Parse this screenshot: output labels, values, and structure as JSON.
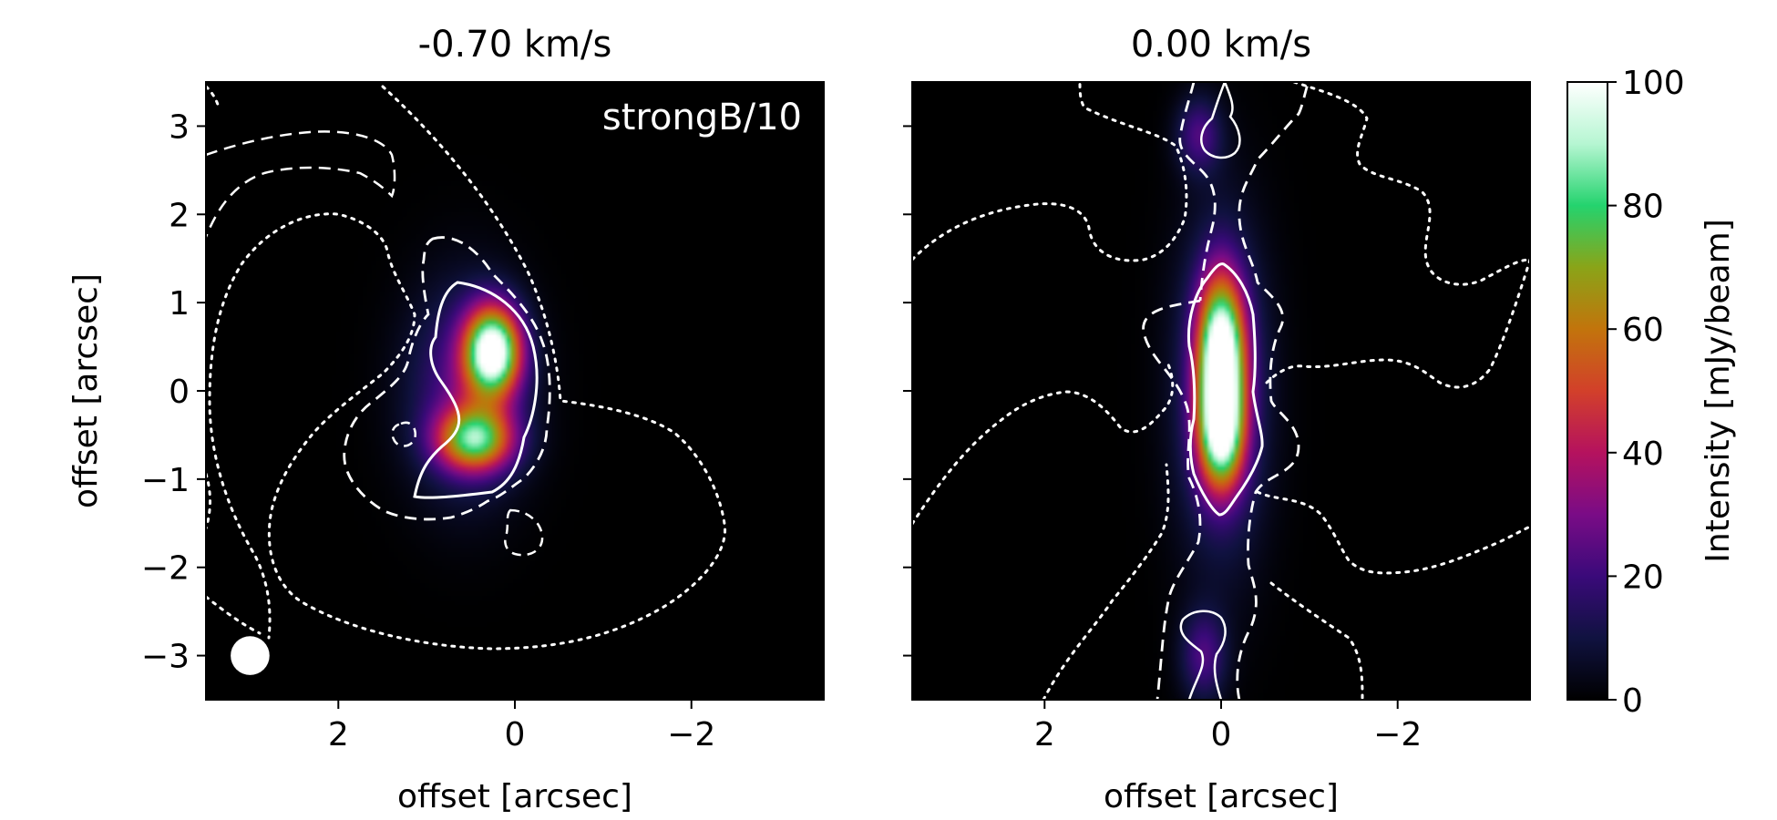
{
  "chart_data": [
    {
      "type": "heatmap",
      "title": "-0.70 km/s",
      "annotation": "strongB/10",
      "xlabel": "offset [arcsec]",
      "ylabel": "offset [arcsec]",
      "xlim": [
        3.5,
        -3.5
      ],
      "ylim": [
        -3.5,
        3.5
      ],
      "xticks": [
        2,
        0,
        -2
      ],
      "xtick_labels": [
        "2",
        "0",
        "−2"
      ],
      "yticks": [
        3,
        2,
        1,
        0,
        -1,
        -2,
        -3
      ],
      "ytick_labels": [
        "3",
        "2",
        "1",
        "0",
        "−1",
        "−2",
        "−3"
      ],
      "beam": {
        "x": 3.0,
        "y": -3.0,
        "radius_arcsec": 0.22
      },
      "peak_intensity": 100,
      "emission_components": [
        {
          "x": 0.25,
          "y": 0.45,
          "sigma_x": 0.22,
          "sigma_y": 0.35,
          "amplitude": 100
        },
        {
          "x": 0.45,
          "y": -0.55,
          "sigma_x": 0.3,
          "sigma_y": 0.25,
          "amplitude": 70
        },
        {
          "x": 0.55,
          "y": 0.0,
          "sigma_x": 0.45,
          "sigma_y": 0.8,
          "amplitude": 25
        }
      ]
    },
    {
      "type": "heatmap",
      "title": "0.00 km/s",
      "xlabel": "offset [arcsec]",
      "ylabel": "",
      "xlim": [
        3.5,
        -3.5
      ],
      "ylim": [
        -3.5,
        3.5
      ],
      "xticks": [
        2,
        0,
        -2
      ],
      "xtick_labels": [
        "2",
        "0",
        "−2"
      ],
      "yticks": [
        3,
        2,
        1,
        0,
        -1,
        -2,
        -3
      ],
      "peak_intensity": 100,
      "emission_components": [
        {
          "x": 0.0,
          "y": 0.4,
          "sigma_x": 0.18,
          "sigma_y": 0.6,
          "amplitude": 100
        },
        {
          "x": 0.0,
          "y": -0.5,
          "sigma_x": 0.18,
          "sigma_y": 0.45,
          "amplitude": 70
        },
        {
          "x": 0.0,
          "y": 0.0,
          "sigma_x": 0.35,
          "sigma_y": 1.3,
          "amplitude": 25
        },
        {
          "x": 0.25,
          "y": 2.9,
          "sigma_x": 0.18,
          "sigma_y": 0.3,
          "amplitude": 22
        },
        {
          "x": 0.2,
          "y": -3.0,
          "sigma_x": 0.18,
          "sigma_y": 0.35,
          "amplitude": 22
        }
      ]
    }
  ],
  "colorbar": {
    "label": "Intensity [mJy/beam]",
    "min": 0,
    "max": 100,
    "ticks": [
      0,
      20,
      40,
      60,
      80,
      100
    ],
    "tick_labels": [
      "0",
      "20",
      "40",
      "60",
      "80",
      "100"
    ],
    "colors": [
      "#000000",
      "#101240",
      "#3a0a7a",
      "#7a0c86",
      "#b5125e",
      "#d2402a",
      "#c2740c",
      "#8aa418",
      "#24d36e",
      "#b6f6d2",
      "#ffffff"
    ]
  }
}
